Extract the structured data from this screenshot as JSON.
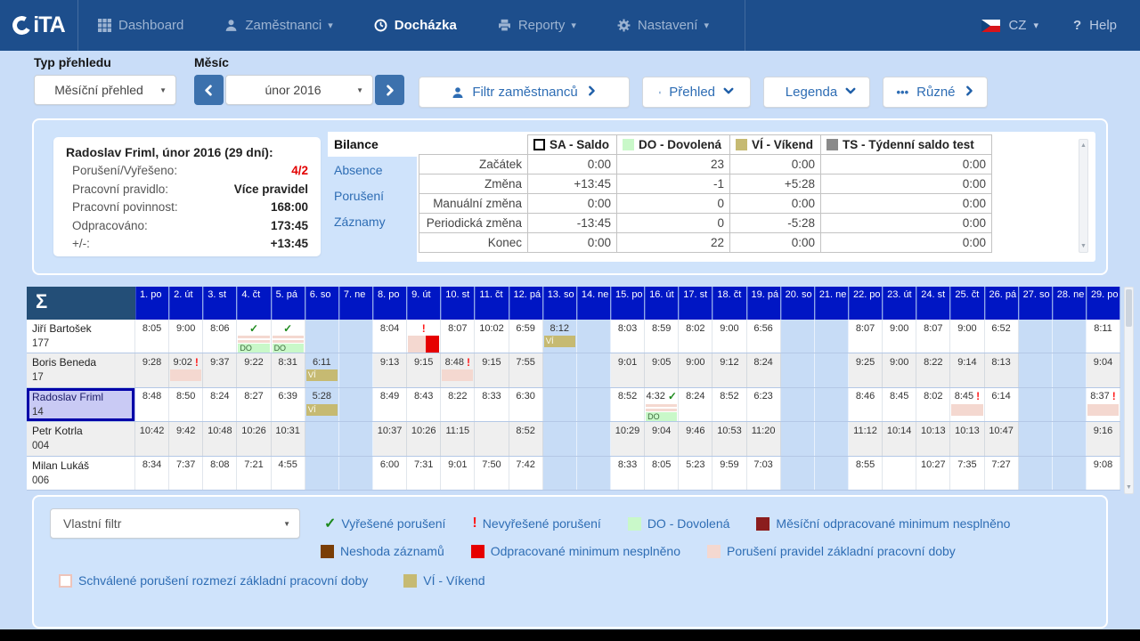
{
  "colors": {
    "nav_bg": "#1d4e8c",
    "page_bg": "#c9ddf8",
    "day_header": "#0016c4",
    "weekend": "#c7dcf6",
    "selected_border": "#0000a8",
    "accent_blue": "#2e6db4",
    "violation_pink": "#f4d8d0",
    "red": "#e60000",
    "dark_red": "#8b1d1d",
    "brown": "#7a3e06",
    "holiday_green": "#c9f8c9",
    "weekend_khaki": "#c6ba72"
  },
  "nav": {
    "logo_text": "iTA",
    "items": [
      {
        "id": "dashboard",
        "label": "Dashboard",
        "icon": "grid-icon",
        "caret": false,
        "active": false
      },
      {
        "id": "zamestnanci",
        "label": "Zaměstnanci",
        "icon": "person-icon",
        "caret": true,
        "active": false
      },
      {
        "id": "dochazka",
        "label": "Docházka",
        "icon": "clock-icon",
        "caret": false,
        "active": true
      },
      {
        "id": "reporty",
        "label": "Reporty",
        "icon": "printer-icon",
        "caret": true,
        "active": false
      },
      {
        "id": "nastaveni",
        "label": "Nastavení",
        "icon": "gear-icon",
        "caret": true,
        "active": false
      }
    ],
    "lang": "CZ",
    "help_q": "?",
    "help_label": "Help"
  },
  "toolbar": {
    "type_label": "Typ přehledu",
    "type_value": "Měsíční přehled",
    "month_label": "Měsíc",
    "month_value": "únor 2016",
    "filter_btn": "Filtr zaměstnanců",
    "overview_btn": "Přehled",
    "legend_btn": "Legenda",
    "misc_btn": "Různé"
  },
  "summary": {
    "title": "Radoslav Friml, únor 2016 (29 dní):",
    "rows": [
      {
        "label": "Porušení/Vyřešeno:",
        "value": "4/2",
        "red": true
      },
      {
        "label": "Pracovní pravidlo:",
        "value": "Více pravidel",
        "red": false
      },
      {
        "label": "Pracovní povinnost:",
        "value": "168:00",
        "red": false
      },
      {
        "label": "Odpracováno:",
        "value": "173:45",
        "red": false
      },
      {
        "label": "+/-:",
        "value": "+13:45",
        "red": false
      }
    ]
  },
  "bilance": {
    "tabs": [
      {
        "label": "Bilance",
        "active": true
      },
      {
        "label": "Absence",
        "active": false
      },
      {
        "label": "Porušení",
        "active": false
      },
      {
        "label": "Záznamy",
        "active": false
      }
    ],
    "columns": [
      {
        "label": "SA - Saldo",
        "swatch": "#ffffff",
        "swatch_border": "#000000",
        "cls": "col-sa"
      },
      {
        "label": "DO - Dovolená",
        "swatch": "#c9f8c9",
        "swatch_border": "",
        "cls": "col-do"
      },
      {
        "label": "VÍ - Víkend",
        "swatch": "#c6ba72",
        "swatch_border": "",
        "cls": "col-vi"
      },
      {
        "label": "TS - Týdenní saldo test",
        "swatch": "#8a8a8a",
        "swatch_border": "",
        "cls": "col-ts"
      }
    ],
    "rows": [
      {
        "label": "Začátek",
        "values": [
          "0:00",
          "23",
          "0:00",
          "0:00"
        ]
      },
      {
        "label": "Změna",
        "values": [
          "+13:45",
          "-1",
          "+5:28",
          "0:00"
        ]
      },
      {
        "label": "Manuální změna",
        "values": [
          "0:00",
          "0",
          "0:00",
          "0:00"
        ]
      },
      {
        "label": "Periodická změna",
        "values": [
          "-13:45",
          "0",
          "-5:28",
          "0:00"
        ]
      },
      {
        "label": "Konec",
        "values": [
          "0:00",
          "22",
          "0:00",
          "0:00"
        ]
      }
    ]
  },
  "grid": {
    "sum_symbol": "Σ",
    "days": [
      "1. po",
      "2. út",
      "3. st",
      "4. čt",
      "5. pá",
      "6. so",
      "7. ne",
      "8. po",
      "9. út",
      "10. st",
      "11. čt",
      "12. pá",
      "13. so",
      "14. ne",
      "15. po",
      "16. út",
      "17. st",
      "18. čt",
      "19. pá",
      "20. so",
      "21. ne",
      "22. po",
      "23. út",
      "24. st",
      "25. čt",
      "26. pá",
      "27. so",
      "28. ne",
      "29. po"
    ],
    "weekend_days": [
      6,
      7,
      13,
      14,
      20,
      21,
      27,
      28
    ],
    "employees": [
      {
        "name": "Jiří Bartošek",
        "number": "177",
        "selected": false,
        "cells": [
          {
            "d": 1,
            "v": "8:05"
          },
          {
            "d": 2,
            "v": "9:00"
          },
          {
            "d": 3,
            "v": "8:06"
          },
          {
            "d": 4,
            "flag": "check",
            "marks": [
              "approved",
              "do"
            ]
          },
          {
            "d": 5,
            "flag": "check",
            "marks": [
              "approved",
              "do"
            ]
          },
          {
            "d": 8,
            "v": "8:04"
          },
          {
            "d": 9,
            "flag": "excl",
            "marks": [
              "pinkred"
            ]
          },
          {
            "d": 10,
            "v": "8:07"
          },
          {
            "d": 11,
            "v": "10:02"
          },
          {
            "d": 12,
            "v": "6:59"
          },
          {
            "d": 13,
            "v": "8:12",
            "marks": [
              "vi"
            ]
          },
          {
            "d": 15,
            "v": "8:03"
          },
          {
            "d": 16,
            "v": "8:59"
          },
          {
            "d": 17,
            "v": "8:02"
          },
          {
            "d": 18,
            "v": "9:00"
          },
          {
            "d": 19,
            "v": "6:56"
          },
          {
            "d": 22,
            "v": "8:07"
          },
          {
            "d": 23,
            "v": "9:00"
          },
          {
            "d": 24,
            "v": "8:07"
          },
          {
            "d": 25,
            "v": "9:00"
          },
          {
            "d": 26,
            "v": "6:52"
          },
          {
            "d": 29,
            "v": "8:11"
          }
        ]
      },
      {
        "name": "Boris Beneda",
        "number": "17",
        "selected": false,
        "cells": [
          {
            "d": 1,
            "v": "9:28"
          },
          {
            "d": 2,
            "v": "9:02",
            "flag": "excl",
            "marks": [
              "pink"
            ]
          },
          {
            "d": 3,
            "v": "9:37"
          },
          {
            "d": 4,
            "v": "9:22"
          },
          {
            "d": 5,
            "v": "8:31"
          },
          {
            "d": 6,
            "v": "6:11",
            "marks": [
              "vi"
            ]
          },
          {
            "d": 8,
            "v": "9:13"
          },
          {
            "d": 9,
            "v": "9:15"
          },
          {
            "d": 10,
            "v": "8:48",
            "flag": "excl",
            "marks": [
              "pink"
            ]
          },
          {
            "d": 11,
            "v": "9:15"
          },
          {
            "d": 12,
            "v": "7:55"
          },
          {
            "d": 15,
            "v": "9:01"
          },
          {
            "d": 16,
            "v": "9:05"
          },
          {
            "d": 17,
            "v": "9:00"
          },
          {
            "d": 18,
            "v": "9:12"
          },
          {
            "d": 19,
            "v": "8:24"
          },
          {
            "d": 22,
            "v": "9:25"
          },
          {
            "d": 23,
            "v": "9:00"
          },
          {
            "d": 24,
            "v": "8:22"
          },
          {
            "d": 25,
            "v": "9:14"
          },
          {
            "d": 26,
            "v": "8:13"
          },
          {
            "d": 29,
            "v": "9:04"
          }
        ]
      },
      {
        "name": "Radoslav Friml",
        "number": "14",
        "selected": true,
        "cells": [
          {
            "d": 1,
            "v": "8:48"
          },
          {
            "d": 2,
            "v": "8:50"
          },
          {
            "d": 3,
            "v": "8:24"
          },
          {
            "d": 4,
            "v": "8:27"
          },
          {
            "d": 5,
            "v": "6:39"
          },
          {
            "d": 6,
            "v": "5:28",
            "marks": [
              "vi"
            ]
          },
          {
            "d": 8,
            "v": "8:49"
          },
          {
            "d": 9,
            "v": "8:43"
          },
          {
            "d": 10,
            "v": "8:22"
          },
          {
            "d": 11,
            "v": "8:33"
          },
          {
            "d": 12,
            "v": "6:30"
          },
          {
            "d": 15,
            "v": "8:52"
          },
          {
            "d": 16,
            "v": "4:32",
            "flag": "check",
            "marks": [
              "approved",
              "do"
            ]
          },
          {
            "d": 17,
            "v": "8:24"
          },
          {
            "d": 18,
            "v": "8:52"
          },
          {
            "d": 19,
            "v": "6:23"
          },
          {
            "d": 22,
            "v": "8:46"
          },
          {
            "d": 23,
            "v": "8:45"
          },
          {
            "d": 24,
            "v": "8:02"
          },
          {
            "d": 25,
            "v": "8:45",
            "flag": "excl",
            "marks": [
              "pink"
            ]
          },
          {
            "d": 26,
            "v": "6:14"
          },
          {
            "d": 29,
            "v": "8:37",
            "flag": "excl",
            "marks": [
              "pink"
            ]
          }
        ]
      },
      {
        "name": "Petr Kotrla",
        "number": "004",
        "selected": false,
        "cells": [
          {
            "d": 1,
            "v": "10:42"
          },
          {
            "d": 2,
            "v": "9:42"
          },
          {
            "d": 3,
            "v": "10:48"
          },
          {
            "d": 4,
            "v": "10:26"
          },
          {
            "d": 5,
            "v": "10:31"
          },
          {
            "d": 8,
            "v": "10:37"
          },
          {
            "d": 9,
            "v": "10:26"
          },
          {
            "d": 10,
            "v": "11:15"
          },
          {
            "d": 12,
            "v": "8:52"
          },
          {
            "d": 15,
            "v": "10:29"
          },
          {
            "d": 16,
            "v": "9:04"
          },
          {
            "d": 17,
            "v": "9:46"
          },
          {
            "d": 18,
            "v": "10:53"
          },
          {
            "d": 19,
            "v": "11:20"
          },
          {
            "d": 22,
            "v": "11:12"
          },
          {
            "d": 23,
            "v": "10:14"
          },
          {
            "d": 24,
            "v": "10:13"
          },
          {
            "d": 25,
            "v": "10:13"
          },
          {
            "d": 26,
            "v": "10:47"
          },
          {
            "d": 29,
            "v": "9:16"
          }
        ]
      },
      {
        "name": "Milan Lukáš",
        "number": "006",
        "selected": false,
        "cells": [
          {
            "d": 1,
            "v": "8:34"
          },
          {
            "d": 2,
            "v": "7:37"
          },
          {
            "d": 3,
            "v": "8:08"
          },
          {
            "d": 4,
            "v": "7:21"
          },
          {
            "d": 5,
            "v": "4:55"
          },
          {
            "d": 8,
            "v": "6:00"
          },
          {
            "d": 9,
            "v": "7:31"
          },
          {
            "d": 10,
            "v": "9:01"
          },
          {
            "d": 11,
            "v": "7:50"
          },
          {
            "d": 12,
            "v": "7:42"
          },
          {
            "d": 15,
            "v": "8:33"
          },
          {
            "d": 16,
            "v": "8:05"
          },
          {
            "d": 17,
            "v": "5:23"
          },
          {
            "d": 18,
            "v": "9:59"
          },
          {
            "d": 19,
            "v": "7:03"
          },
          {
            "d": 22,
            "v": "8:55"
          },
          {
            "d": 24,
            "v": "10:27"
          },
          {
            "d": 25,
            "v": "7:35"
          },
          {
            "d": 26,
            "v": "7:27"
          },
          {
            "d": 29,
            "v": "9:08"
          }
        ]
      }
    ]
  },
  "legend": {
    "filter_value": "Vlastní filtr",
    "rows": [
      [
        {
          "glyph": "check",
          "label": "Vyřešené porušení"
        },
        {
          "glyph": "excl",
          "label": "Nevyřešené porušení"
        },
        {
          "swatch": "#c9f8c9",
          "label": "DO - Dovolená"
        },
        {
          "swatch": "#8b1d1d",
          "label": "Měsíční odpracované minimum nesplněno"
        }
      ],
      [
        {
          "swatch": "#7a3e06",
          "label": "Neshoda záznamů"
        },
        {
          "swatch": "#e60000",
          "label": "Odpracované minimum nesplněno"
        },
        {
          "swatch": "#f4d8d0",
          "label": "Porušení pravidel základní pracovní doby"
        }
      ],
      [
        {
          "swatch": "#ffffff",
          "swatch_border": "#eec4ba",
          "label": "Schválené porušení rozmezí základní pracovní doby"
        },
        {
          "swatch": "#c6ba72",
          "label": "VÍ - Víkend"
        }
      ]
    ]
  }
}
